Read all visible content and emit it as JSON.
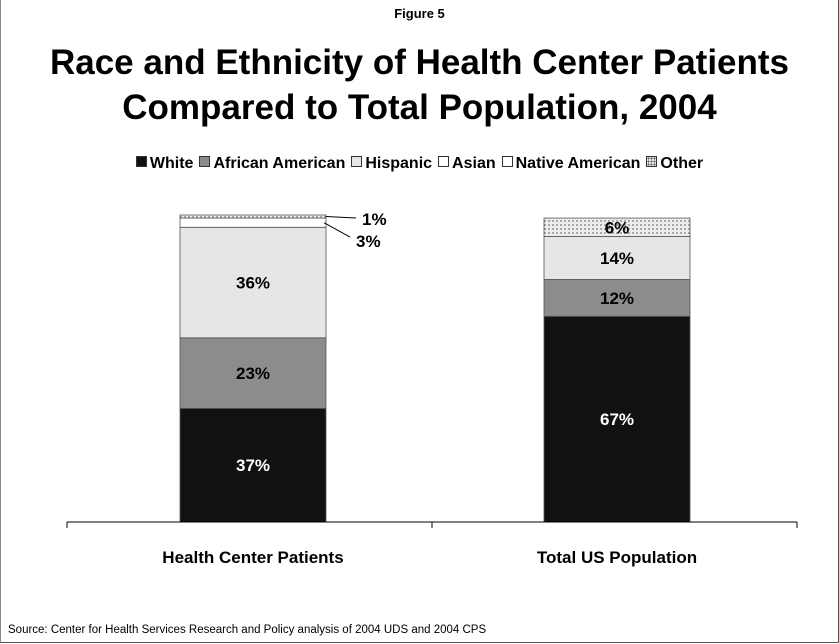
{
  "figure_label": "Figure 5",
  "title_lines": [
    "Race and Ethnicity of Health Center Patients",
    "Compared to Total Population, 2004"
  ],
  "source": "Source: Center for Health Services Research and Policy analysis of 2004 UDS and 2004 CPS",
  "legend": [
    {
      "label": "White",
      "color": "#111111",
      "pattern": "solid"
    },
    {
      "label": "African American",
      "color": "#8c8c8c",
      "pattern": "solid"
    },
    {
      "label": "Hispanic",
      "color": "#e6e6e6",
      "pattern": "solid"
    },
    {
      "label": "Asian",
      "color": "#ffffff",
      "pattern": "solid"
    },
    {
      "label": "Native American",
      "color": "#ffffff",
      "pattern": "solid"
    },
    {
      "label": "Other",
      "color": "#d6d6d6",
      "pattern": "dotted"
    }
  ],
  "chart_data": {
    "type": "bar",
    "stacked": true,
    "categories": [
      "Health Center Patients",
      "Total US Population"
    ],
    "series": [
      {
        "name": "White",
        "values": [
          37,
          67
        ],
        "labels": [
          "37%",
          "67%"
        ]
      },
      {
        "name": "African American",
        "values": [
          23,
          12
        ],
        "labels": [
          "23%",
          "12%"
        ]
      },
      {
        "name": "Hispanic",
        "values": [
          36,
          14
        ],
        "labels": [
          "36%",
          "14%"
        ]
      },
      {
        "name": "Asian",
        "values": [
          3,
          null
        ],
        "labels": [
          "3%",
          ""
        ]
      },
      {
        "name": "Native American",
        "values": [
          null,
          null
        ],
        "labels": [
          "",
          ""
        ]
      },
      {
        "name": "Other",
        "values": [
          1,
          6
        ],
        "labels": [
          "1%",
          "6%"
        ]
      }
    ],
    "ylim": [
      0,
      100
    ],
    "grid": false,
    "legend_position": "top"
  }
}
